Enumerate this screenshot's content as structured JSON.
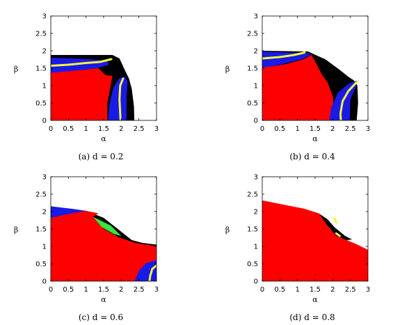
{
  "figure": {
    "panels": [
      {
        "caption": "(a)  d = 0.2"
      },
      {
        "caption": "(b)  d = 0.4"
      },
      {
        "caption": "(c)  d = 0.6"
      },
      {
        "caption": "(d)  d = 0.8"
      }
    ]
  },
  "colors": {
    "red": "#ff0000",
    "blue": "#1a1ae6",
    "yellow": "#f5f53c",
    "black": "#000000",
    "green": "#39e639",
    "brown": "#8a4a3a"
  },
  "chart_data": [
    {
      "type": "heatmap",
      "title": "",
      "caption": "(a)  d = 0.2",
      "xlabel": "α",
      "ylabel": "β",
      "xlim": [
        0,
        3
      ],
      "ylim": [
        0,
        3
      ],
      "xticks": [
        "0",
        "0.5",
        "1",
        "1.5",
        "2",
        "2.5",
        "3"
      ],
      "yticks": [
        "0",
        "0.5",
        "1",
        "1.5",
        "2",
        "2.5",
        "3"
      ],
      "grid": false,
      "regions": [
        {
          "color": "black",
          "points": [
            [
              0,
              0
            ],
            [
              0,
              1.88
            ],
            [
              1.75,
              1.88
            ],
            [
              1.95,
              1.78
            ],
            [
              2.1,
              1.45
            ],
            [
              2.22,
              1.2
            ],
            [
              2.3,
              0.9
            ],
            [
              2.36,
              0.4
            ],
            [
              2.37,
              0
            ],
            [
              0,
              0
            ]
          ]
        },
        {
          "color": "blue",
          "points": [
            [
              0,
              1.35
            ],
            [
              0,
              1.8
            ],
            [
              0.9,
              1.77
            ],
            [
              1.6,
              1.72
            ],
            [
              1.65,
              1.6
            ],
            [
              1.3,
              1.5
            ],
            [
              0.6,
              1.42
            ],
            [
              0,
              1.35
            ]
          ]
        },
        {
          "color": "red",
          "points": [
            [
              0,
              0
            ],
            [
              0,
              1.37
            ],
            [
              0.7,
              1.43
            ],
            [
              1.35,
              1.5
            ],
            [
              1.55,
              1.3
            ],
            [
              1.75,
              1.28
            ],
            [
              1.68,
              0.9
            ],
            [
              1.6,
              0.5
            ],
            [
              1.6,
              0
            ],
            [
              0,
              0
            ]
          ]
        },
        {
          "color": "blue",
          "points": [
            [
              1.62,
              0
            ],
            [
              1.68,
              0.55
            ],
            [
              1.78,
              0.95
            ],
            [
              1.93,
              1.2
            ],
            [
              2.1,
              1.27
            ],
            [
              2.18,
              1.1
            ],
            [
              2.15,
              0.7
            ],
            [
              2.15,
              0
            ],
            [
              1.62,
              0
            ]
          ]
        }
      ],
      "curves": [
        {
          "color": "yellow",
          "points": [
            [
              0,
              1.57
            ],
            [
              0.5,
              1.6
            ],
            [
              1.0,
              1.65
            ],
            [
              1.4,
              1.68
            ],
            [
              1.72,
              1.76
            ]
          ]
        },
        {
          "color": "yellow",
          "points": [
            [
              2.05,
              1.2
            ],
            [
              1.97,
              1.0
            ],
            [
              1.95,
              0.6
            ],
            [
              1.97,
              0.2
            ],
            [
              1.98,
              0
            ]
          ]
        }
      ]
    },
    {
      "type": "heatmap",
      "title": "",
      "caption": "(b)  d = 0.4",
      "xlabel": "α",
      "ylabel": "β",
      "xlim": [
        0,
        3
      ],
      "ylim": [
        0,
        3
      ],
      "xticks": [
        "0",
        "0.5",
        "1",
        "1.5",
        "2",
        "2.5",
        "3"
      ],
      "yticks": [
        "0",
        "0.5",
        "1",
        "1.5",
        "2",
        "2.5",
        "3"
      ],
      "grid": false,
      "regions": [
        {
          "color": "black",
          "points": [
            [
              0,
              0
            ],
            [
              0,
              2.0
            ],
            [
              1.3,
              1.98
            ],
            [
              1.8,
              1.75
            ],
            [
              2.2,
              1.45
            ],
            [
              2.45,
              1.25
            ],
            [
              2.6,
              1.15
            ],
            [
              2.7,
              1.0
            ],
            [
              2.72,
              0.5
            ],
            [
              2.68,
              0
            ],
            [
              0,
              0
            ]
          ]
        },
        {
          "color": "blue",
          "points": [
            [
              0,
              1.5
            ],
            [
              0,
              1.98
            ],
            [
              0.7,
              1.95
            ],
            [
              1.28,
              1.93
            ],
            [
              1.4,
              1.9
            ],
            [
              1.1,
              1.75
            ],
            [
              0.5,
              1.6
            ],
            [
              0,
              1.5
            ]
          ]
        },
        {
          "color": "red",
          "points": [
            [
              0,
              0
            ],
            [
              0,
              1.52
            ],
            [
              0.6,
              1.6
            ],
            [
              1.15,
              1.75
            ],
            [
              1.4,
              1.88
            ],
            [
              1.55,
              1.6
            ],
            [
              1.7,
              1.3
            ],
            [
              1.85,
              1.1
            ],
            [
              2.0,
              0.7
            ],
            [
              2.05,
              0
            ],
            [
              0,
              0
            ]
          ]
        },
        {
          "color": "blue",
          "points": [
            [
              1.9,
              0
            ],
            [
              1.97,
              0.4
            ],
            [
              2.15,
              0.8
            ],
            [
              2.45,
              1.05
            ],
            [
              2.7,
              1.15
            ],
            [
              2.65,
              0.95
            ],
            [
              2.5,
              0.6
            ],
            [
              2.48,
              0
            ],
            [
              1.9,
              0
            ]
          ]
        }
      ],
      "curves": [
        {
          "color": "yellow",
          "points": [
            [
              0,
              1.78
            ],
            [
              0.5,
              1.82
            ],
            [
              0.9,
              1.88
            ],
            [
              1.2,
              1.95
            ]
          ]
        },
        {
          "color": "yellow",
          "points": [
            [
              2.68,
              1.1
            ],
            [
              2.45,
              0.85
            ],
            [
              2.28,
              0.55
            ],
            [
              2.22,
              0.2
            ],
            [
              2.23,
              0
            ]
          ]
        }
      ]
    },
    {
      "type": "heatmap",
      "title": "",
      "caption": "(c)  d = 0.6",
      "xlabel": "α",
      "ylabel": "β",
      "xlim": [
        0,
        3
      ],
      "ylim": [
        0,
        3
      ],
      "xticks": [
        "0",
        "0.5",
        "1",
        "1.5",
        "2",
        "2.5",
        "3"
      ],
      "yticks": [
        "0",
        "0.5",
        "1",
        "1.5",
        "2",
        "2.5",
        "3"
      ],
      "grid": false,
      "regions": [
        {
          "color": "black",
          "points": [
            [
              0,
              0
            ],
            [
              0,
              2.15
            ],
            [
              1.0,
              2.02
            ],
            [
              1.5,
              1.82
            ],
            [
              1.9,
              1.5
            ],
            [
              2.3,
              1.18
            ],
            [
              2.6,
              1.1
            ],
            [
              3.0,
              1.05
            ],
            [
              3.0,
              0
            ],
            [
              0,
              0
            ]
          ]
        },
        {
          "color": "blue",
          "points": [
            [
              0,
              1.8
            ],
            [
              0,
              2.15
            ],
            [
              0.6,
              2.08
            ],
            [
              1.0,
              2.02
            ],
            [
              0.5,
              1.92
            ],
            [
              0,
              1.8
            ]
          ]
        },
        {
          "color": "red",
          "points": [
            [
              0,
              0
            ],
            [
              0,
              1.82
            ],
            [
              0.5,
              1.93
            ],
            [
              1.0,
              2.02
            ],
            [
              1.35,
              1.95
            ],
            [
              1.2,
              1.85
            ],
            [
              1.5,
              1.5
            ],
            [
              1.95,
              1.25
            ],
            [
              2.4,
              1.1
            ],
            [
              3.0,
              1.0
            ],
            [
              3.0,
              0
            ],
            [
              0,
              0
            ]
          ]
        },
        {
          "color": "blue",
          "points": [
            [
              2.38,
              0
            ],
            [
              2.5,
              0.3
            ],
            [
              2.7,
              0.52
            ],
            [
              3.0,
              0.6
            ],
            [
              3.0,
              0
            ],
            [
              2.38,
              0
            ]
          ]
        },
        {
          "color": "green",
          "points": [
            [
              1.2,
              1.85
            ],
            [
              1.4,
              1.75
            ],
            [
              1.7,
              1.6
            ],
            [
              2.0,
              1.3
            ],
            [
              1.8,
              1.35
            ],
            [
              1.45,
              1.55
            ],
            [
              1.2,
              1.85
            ]
          ]
        }
      ],
      "curves": [
        {
          "color": "yellow",
          "points": [
            [
              3.0,
              0.45
            ],
            [
              2.88,
              0.35
            ],
            [
              2.82,
              0.15
            ],
            [
              2.8,
              0
            ]
          ]
        }
      ]
    },
    {
      "type": "heatmap",
      "title": "",
      "caption": "(d)  d = 0.8",
      "xlabel": "α",
      "ylabel": "β",
      "xlim": [
        0,
        3
      ],
      "ylim": [
        0,
        3
      ],
      "xticks": [
        "0",
        "0.5",
        "1",
        "1.5",
        "2",
        "2.5",
        "3"
      ],
      "yticks": [
        "0",
        "0.5",
        "1",
        "1.5",
        "2",
        "2.5",
        "3"
      ],
      "grid": false,
      "regions": [
        {
          "color": "black",
          "points": [
            [
              1.6,
              1.95
            ],
            [
              1.85,
              1.78
            ],
            [
              2.05,
              1.55
            ],
            [
              2.35,
              1.3
            ],
            [
              2.55,
              1.2
            ],
            [
              2.4,
              1.18
            ],
            [
              2.1,
              1.28
            ],
            [
              1.85,
              1.55
            ],
            [
              1.6,
              1.95
            ]
          ]
        },
        {
          "color": "red",
          "points": [
            [
              0,
              0
            ],
            [
              0,
              2.32
            ],
            [
              0.6,
              2.2
            ],
            [
              1.2,
              2.08
            ],
            [
              1.6,
              1.95
            ],
            [
              1.85,
              1.6
            ],
            [
              2.1,
              1.3
            ],
            [
              2.4,
              1.18
            ],
            [
              2.7,
              1.05
            ],
            [
              3.0,
              0.9
            ],
            [
              3.0,
              0
            ],
            [
              0,
              0
            ]
          ]
        }
      ],
      "curves": [
        {
          "color": "yellow",
          "points": [
            [
              2.05,
              1.8
            ],
            [
              2.1,
              1.68
            ]
          ]
        },
        {
          "color": "yellow",
          "points": [
            [
              2.1,
              1.37
            ],
            [
              2.2,
              1.3
            ]
          ]
        }
      ]
    }
  ]
}
